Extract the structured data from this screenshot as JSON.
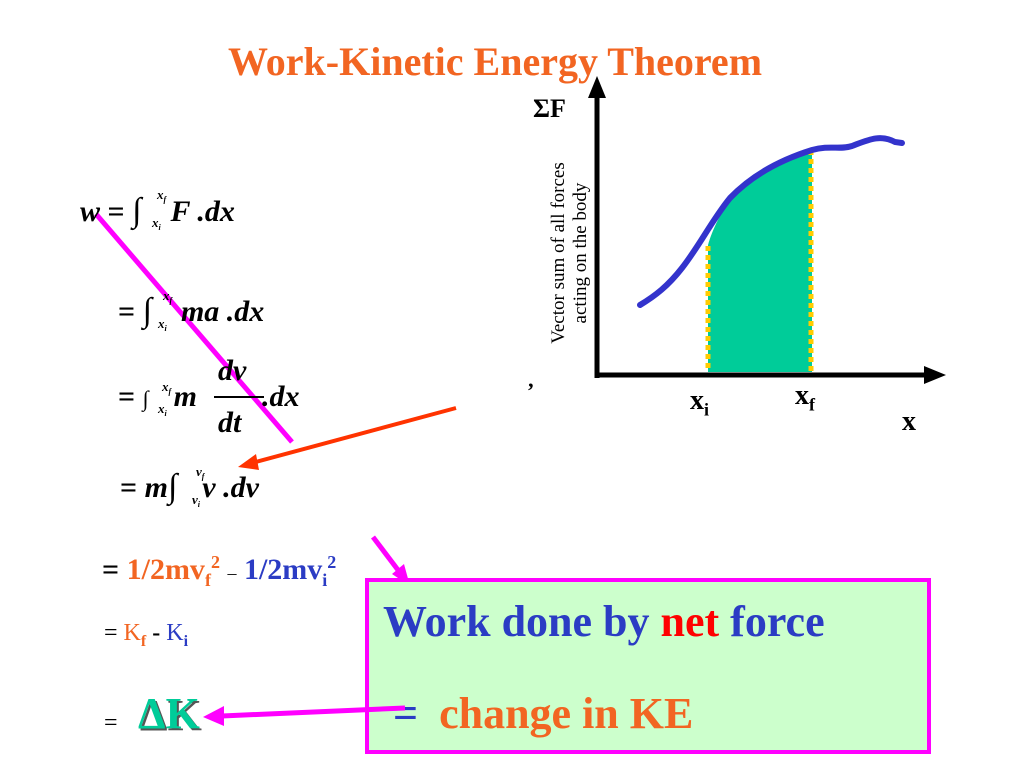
{
  "title": "Work-Kinetic Energy Theorem",
  "graph": {
    "y_axis_label": "ΣF",
    "y_description_line1": "Vector sum of all forces",
    "y_description_line2": "acting on the body",
    "tick_mark": "’",
    "x_axis_label": "x",
    "xi": {
      "base": "x",
      "sub": "i"
    },
    "xf": {
      "base": "x",
      "sub": "f"
    },
    "colors": {
      "curve": "#3333cc",
      "fill": "#00cc99",
      "bound": "#ffcc00",
      "axis": "#000000"
    }
  },
  "equations": {
    "eq1": {
      "lhs": "w",
      "equals": "=",
      "upper": "x",
      "upper_sub": "f",
      "lower": "x",
      "lower_sub": "i",
      "integrand": "F .dx"
    },
    "eq2": {
      "equals": "=",
      "upper": "x",
      "upper_sub": "f",
      "lower": "x",
      "lower_sub": "i",
      "integrand": "ma .dx"
    },
    "eq3": {
      "equals": "=",
      "upper": "x",
      "upper_sub": "f",
      "lower": "x",
      "lower_sub": "i",
      "m": "m",
      "num": "dv",
      "den": "dt",
      "tail": ".dx"
    },
    "eq4": {
      "equals": "=",
      "m": "m",
      "upper": "v",
      "upper_sub": "f",
      "lower": "v",
      "lower_sub": "i",
      "integrand": "v .dv"
    },
    "eq5": {
      "equals": "=",
      "part1": "1/2mv",
      "sub1": "f",
      "sup1": "2",
      "minus": "–",
      "part2": "1/2mv",
      "sub2": "i",
      "sup2": "2"
    },
    "eq6": {
      "equals": "=",
      "kf": "K",
      "kf_sub": "f",
      "minus": "-",
      "ki": "K",
      "ki_sub": "i"
    },
    "eq7": {
      "equals": "=",
      "delta_k": "ΔK"
    }
  },
  "box": {
    "line1_a": "Work done by",
    "line1_b": "net",
    "line1_c": "force",
    "line2_eq": "=",
    "line2_text": "change in KE"
  }
}
